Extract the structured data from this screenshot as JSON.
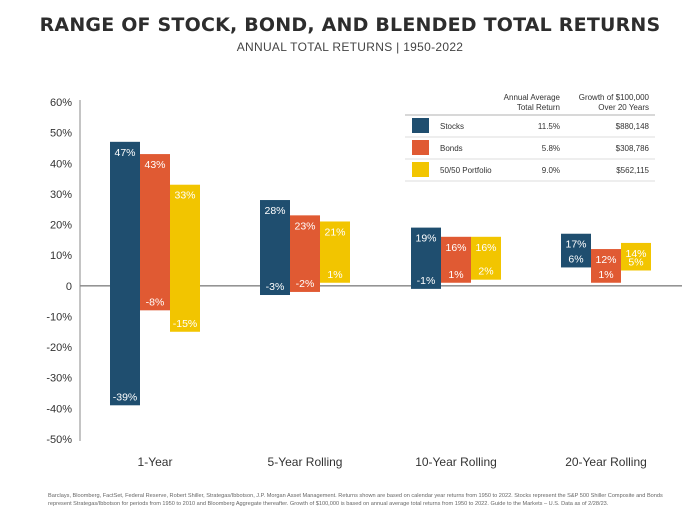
{
  "title": "RANGE OF STOCK, BOND, AND BLENDED TOTAL RETURNS",
  "subtitle": "ANNUAL TOTAL RETURNS | 1950-2022",
  "footnote": "Barclays, Bloomberg, FactSet, Federal Reserve, Robert Shiller, Strategas/Ibbotson, J.P. Morgan Asset Management. Returns shown are based on calendar year returns from 1950 to 2022. Stocks represent the S&P 500 Shiller Composite and Bonds represent Strategas/Ibbotson for periods from 1950 to 2010 and Bloomberg Aggregate thereafter. Growth of $100,000 is based on annual average total returns from 1950 to 2022. Guide to the Markets – U.S. Data as of 2/28/23.",
  "colors": {
    "stocks": "#1f4e6f",
    "bonds": "#e05a33",
    "portfolio": "#f2c500"
  },
  "chart_data": {
    "type": "bar",
    "subtype": "floating-range",
    "categories": [
      "1-Year",
      "5-Year Rolling",
      "10-Year Rolling",
      "20-Year Rolling"
    ],
    "ylim": [
      -50,
      60
    ],
    "yticks": [
      "60%",
      "50%",
      "40%",
      "30%",
      "20%",
      "10%",
      "0",
      "-10%",
      "-20%",
      "-30%",
      "-40%",
      "-50%"
    ],
    "series": [
      {
        "name": "Stocks",
        "color": "#1f4e6f",
        "high": [
          47,
          28,
          19,
          17
        ],
        "low": [
          -39,
          -3,
          -1,
          6
        ],
        "high_labels": [
          "47%",
          "28%",
          "19%",
          "17%"
        ],
        "low_labels": [
          "-39%",
          "-3%",
          "-1%",
          "6%"
        ]
      },
      {
        "name": "Bonds",
        "color": "#e05a33",
        "high": [
          43,
          23,
          16,
          12
        ],
        "low": [
          -8,
          -2,
          1,
          1
        ],
        "high_labels": [
          "43%",
          "23%",
          "16%",
          "12%"
        ],
        "low_labels": [
          "-8%",
          "-2%",
          "1%",
          "1%"
        ]
      },
      {
        "name": "50/50 Portfolio",
        "color": "#f2c500",
        "high": [
          33,
          21,
          16,
          14
        ],
        "low": [
          -15,
          1,
          2,
          5
        ],
        "high_labels": [
          "33%",
          "21%",
          "16%",
          "14%"
        ],
        "low_labels": [
          "-15%",
          "1%",
          "2%",
          "5%"
        ]
      }
    ],
    "legend": {
      "position": "top-right",
      "col1_header": [
        "Annual Average",
        "Total Return"
      ],
      "col2_header": [
        "Growth of $100,000",
        "Over 20 Years"
      ],
      "rows": [
        {
          "name": "Stocks",
          "avg": "11.5%",
          "growth": "$880,148"
        },
        {
          "name": "Bonds",
          "avg": "5.8%",
          "growth": "$308,786"
        },
        {
          "name": "50/50 Portfolio",
          "avg": "9.0%",
          "growth": "$562,115"
        }
      ]
    }
  }
}
